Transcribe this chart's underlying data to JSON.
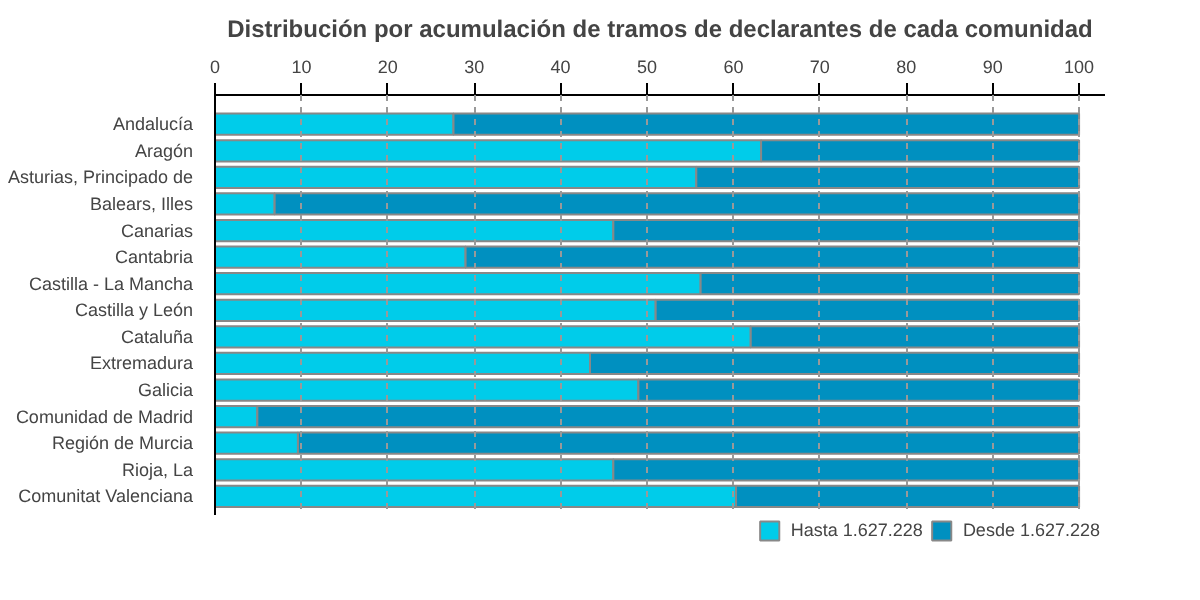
{
  "chart_data": {
    "type": "bar",
    "orientation": "horizontal",
    "stacked": true,
    "title": "Distribución por acumulación de tramos de declarantes de cada comunidad",
    "categories": [
      "Andalucía",
      "Aragón",
      "Asturias, Principado de",
      "Balears, Illes",
      "Canarias",
      "Cantabria",
      "Castilla - La Mancha",
      "Castilla y León",
      "Cataluña",
      "Extremadura",
      "Galicia",
      "Comunidad de Madrid",
      "Región de Murcia",
      "Rioja, La",
      "Comunitat Valenciana"
    ],
    "series": [
      {
        "name": "Hasta 1.627.228",
        "color": "#00ccea",
        "values": [
          27.6,
          63.2,
          55.7,
          6.9,
          46.1,
          29.0,
          56.2,
          51.0,
          62.0,
          43.4,
          49.0,
          4.9,
          9.6,
          46.1,
          60.3
        ]
      },
      {
        "name": "Desde 1.627.228",
        "color": "#0090c0",
        "values": [
          72.4,
          36.8,
          44.3,
          93.1,
          53.9,
          71.0,
          43.8,
          49.0,
          38.0,
          56.6,
          51.0,
          95.1,
          90.4,
          53.9,
          39.7
        ]
      }
    ],
    "xlim": [
      0,
      103
    ],
    "xticks": [
      0,
      10,
      20,
      30,
      40,
      50,
      60,
      70,
      80,
      90,
      100
    ],
    "grid": "x",
    "legend": "bottom"
  }
}
